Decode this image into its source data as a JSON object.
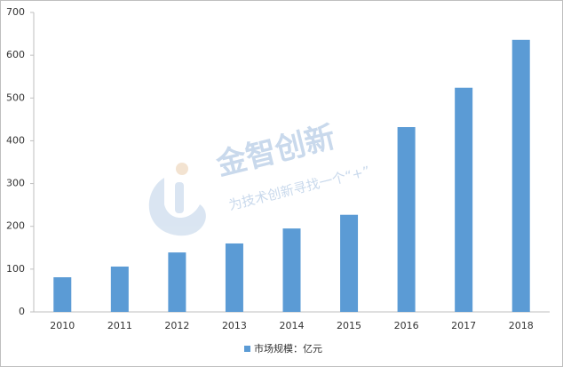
{
  "chart_data": {
    "type": "bar",
    "categories": [
      "2010",
      "2011",
      "2012",
      "2013",
      "2014",
      "2015",
      "2016",
      "2017",
      "2018"
    ],
    "series": [
      {
        "name": "市场规模：亿元",
        "color": "#5b9bd5",
        "values": [
          81,
          106,
          139,
          160,
          195,
          227,
          432,
          524,
          636
        ]
      }
    ],
    "ylim": [
      0,
      700
    ],
    "yticks": [
      0,
      100,
      200,
      300,
      400,
      500,
      600,
      700
    ],
    "legend": "bottom",
    "watermark": [
      "金智创新",
      "为技术创新寻找一个“+”"
    ]
  }
}
